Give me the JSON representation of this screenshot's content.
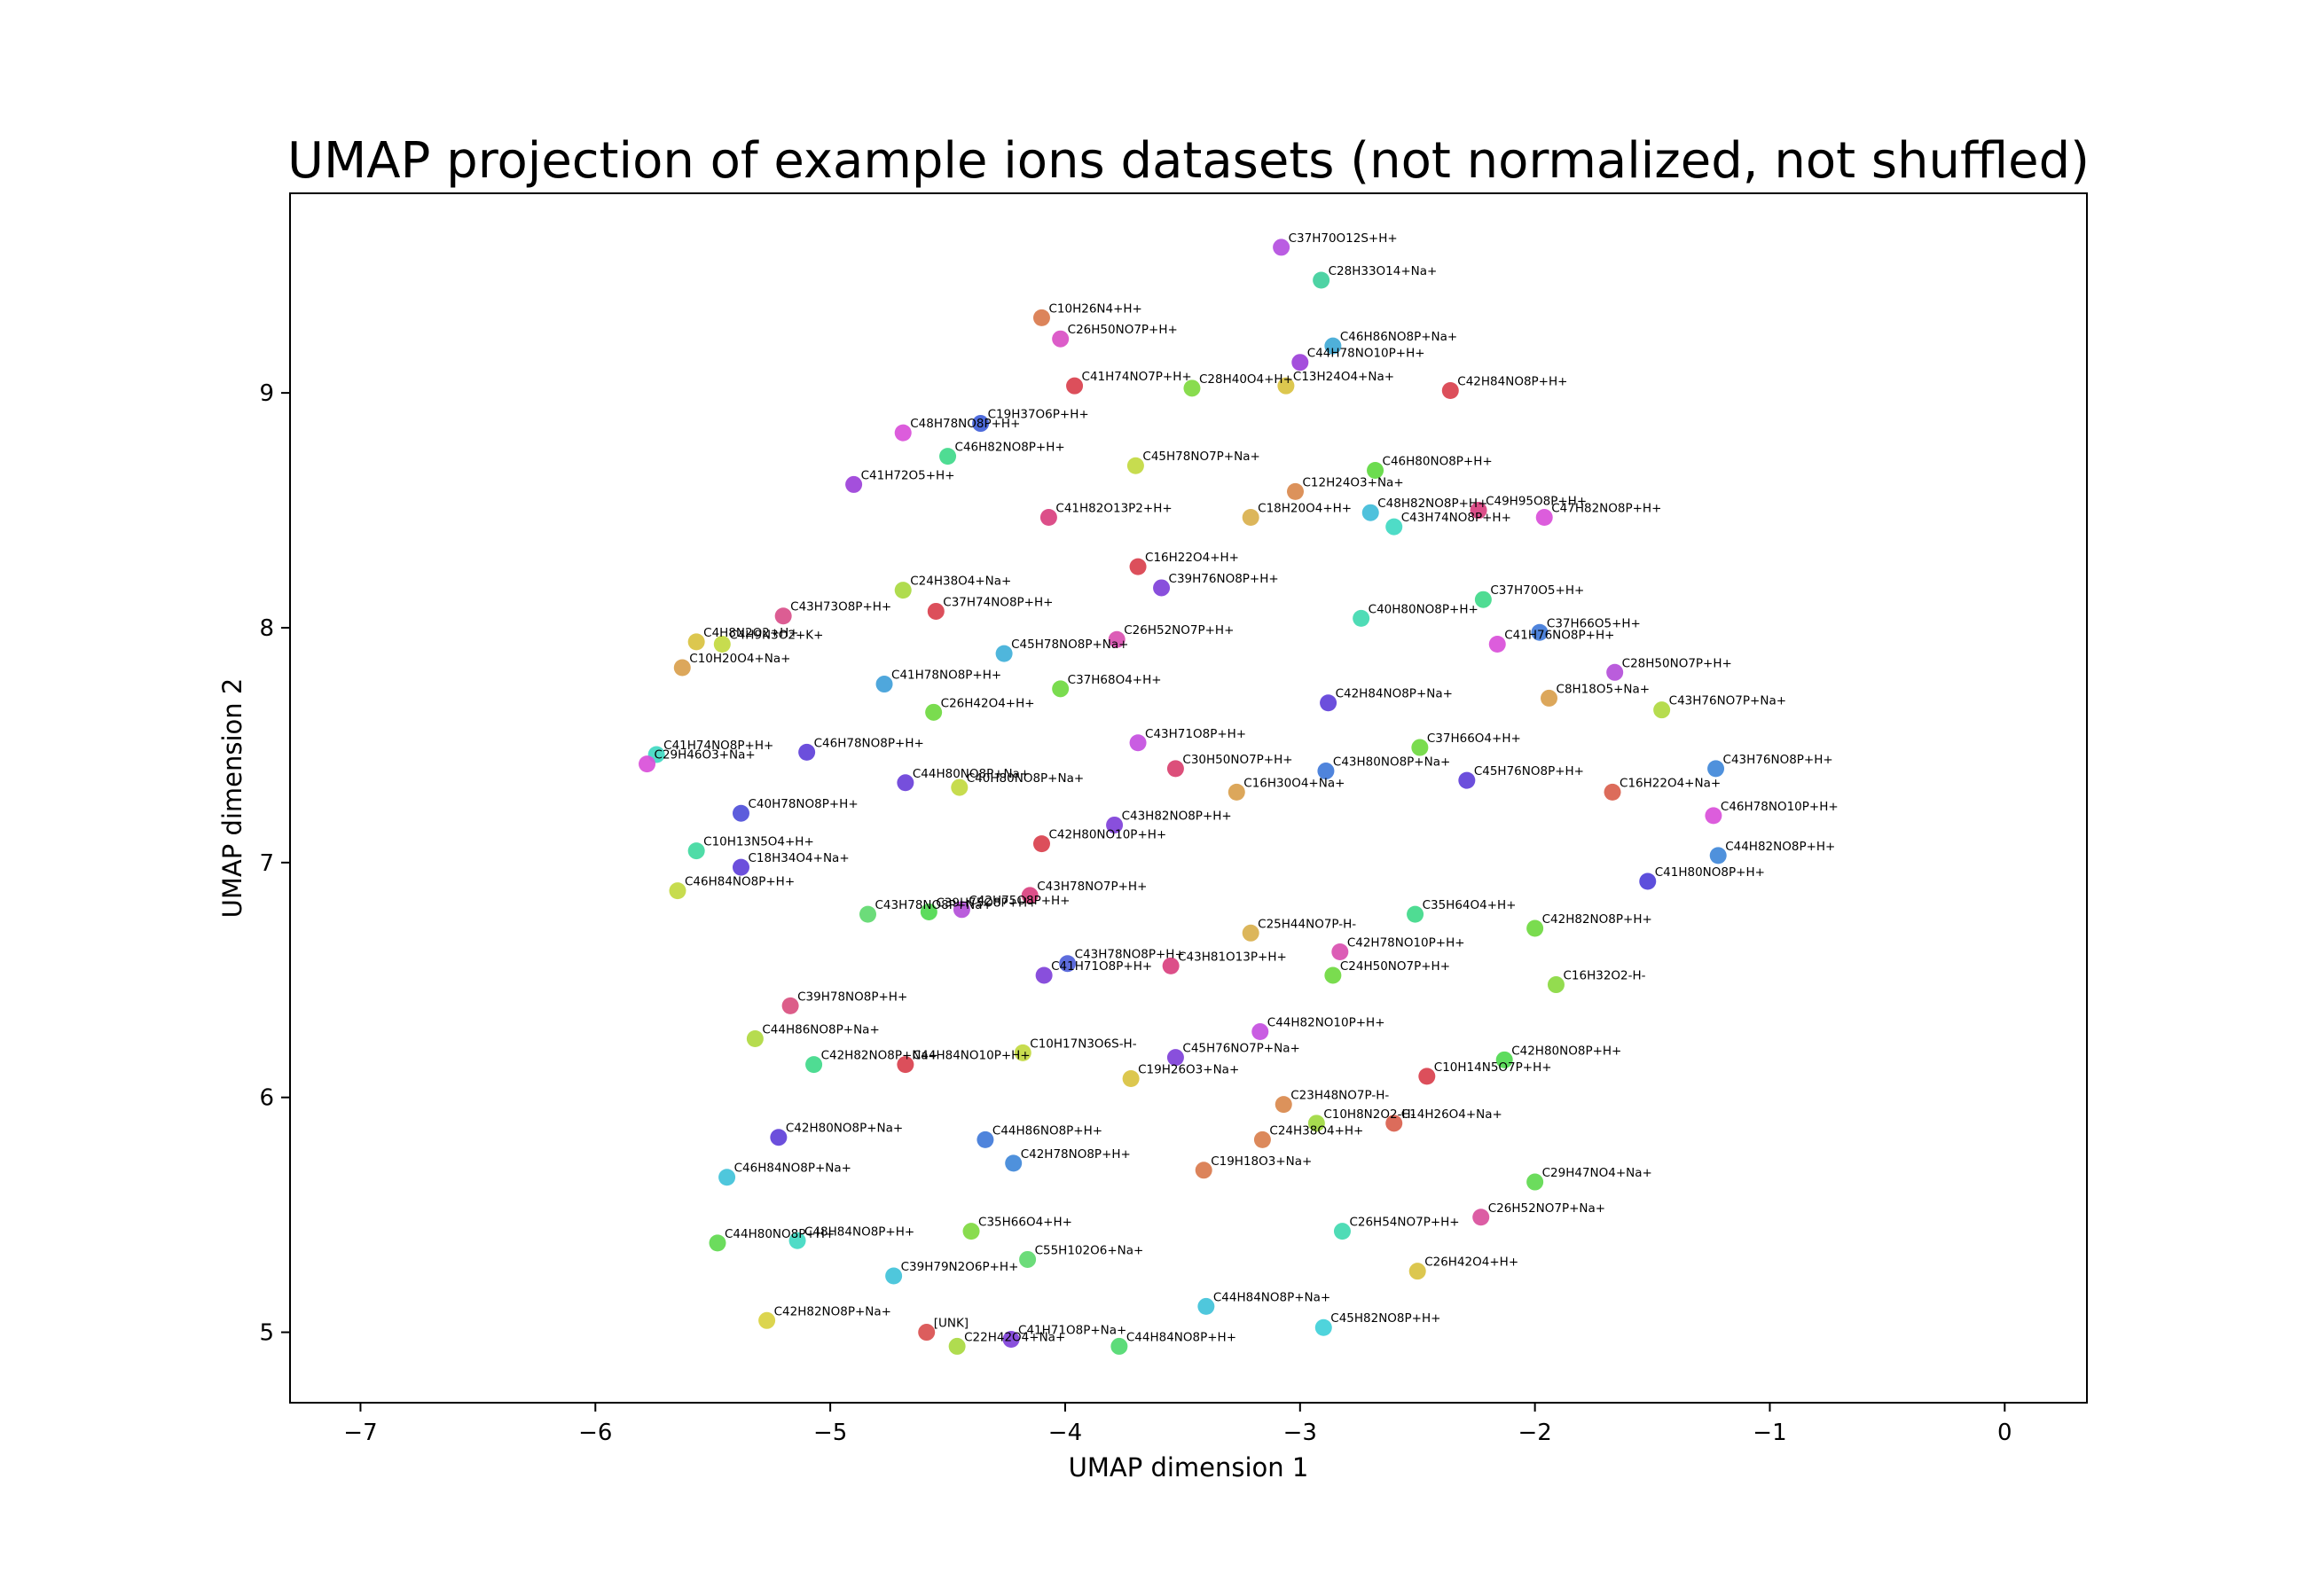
{
  "chart_data": {
    "type": "scatter",
    "title": "UMAP projection of example ions datasets (not normalized, not shuffled)",
    "xlabel": "UMAP dimension 1",
    "ylabel": "UMAP dimension 2",
    "xlim": [
      -7.3,
      0.35
    ],
    "ylim": [
      4.7,
      9.85
    ],
    "xticks": [
      {
        "value": -7,
        "label": "−7"
      },
      {
        "value": -6,
        "label": "−6"
      },
      {
        "value": -5,
        "label": "−5"
      },
      {
        "value": -4,
        "label": "−4"
      },
      {
        "value": -3,
        "label": "−3"
      },
      {
        "value": -2,
        "label": "−2"
      },
      {
        "value": -1,
        "label": "−1"
      },
      {
        "value": 0,
        "label": "0"
      }
    ],
    "yticks": [
      {
        "value": 5,
        "label": "5"
      },
      {
        "value": 6,
        "label": "6"
      },
      {
        "value": 7,
        "label": "7"
      },
      {
        "value": 8,
        "label": "8"
      },
      {
        "value": 9,
        "label": "9"
      }
    ],
    "grid": false,
    "points": [
      {
        "label": "C37H70O12S+H+",
        "x": -3.08,
        "y": 9.62,
        "color": "#b44fe0"
      },
      {
        "label": "C28H33O14+Na+",
        "x": -2.91,
        "y": 9.48,
        "color": "#3fcf9c"
      },
      {
        "label": "C10H26N4+H+",
        "x": -4.1,
        "y": 9.32,
        "color": "#d9794d"
      },
      {
        "label": "C26H50NO7P+H+",
        "x": -4.02,
        "y": 9.23,
        "color": "#d94fc4"
      },
      {
        "label": "C46H86NO8P+Na+",
        "x": -2.86,
        "y": 9.2,
        "color": "#40a9d6"
      },
      {
        "label": "C44H78NO10P+H+",
        "x": -3.0,
        "y": 9.13,
        "color": "#9c40d9"
      },
      {
        "label": "C41H74NO7P+H+",
        "x": -3.96,
        "y": 9.03,
        "color": "#d9404d"
      },
      {
        "label": "C28H40O4+H+",
        "x": -3.46,
        "y": 9.02,
        "color": "#7fd940"
      },
      {
        "label": "C13H24O4+Na+",
        "x": -3.06,
        "y": 9.03,
        "color": "#d9c240"
      },
      {
        "label": "C42H84NO8P+H+",
        "x": -2.36,
        "y": 9.01,
        "color": "#d9404d"
      },
      {
        "label": "C19H37O6P+H+",
        "x": -4.36,
        "y": 8.87,
        "color": "#4060d9"
      },
      {
        "label": "C48H78NO8P+H+",
        "x": -4.69,
        "y": 8.83,
        "color": "#d94fd9"
      },
      {
        "label": "C46H82NO8P+H+",
        "x": -4.5,
        "y": 8.73,
        "color": "#40d98a"
      },
      {
        "label": "C45H78NO7P+Na+",
        "x": -3.7,
        "y": 8.69,
        "color": "#c2d940"
      },
      {
        "label": "C46H80NO8P+H+",
        "x": -2.68,
        "y": 8.67,
        "color": "#5fd940"
      },
      {
        "label": "C41H72O5+H+",
        "x": -4.9,
        "y": 8.61,
        "color": "#9c40d9"
      },
      {
        "label": "C12H24O3+Na+",
        "x": -3.02,
        "y": 8.58,
        "color": "#d9894d"
      },
      {
        "label": "C48H82NO8P+H+",
        "x": -2.7,
        "y": 8.49,
        "color": "#40bcd9"
      },
      {
        "label": "C49H95O8P+H+",
        "x": -2.24,
        "y": 8.5,
        "color": "#d9407f"
      },
      {
        "label": "C41H82O13P2+H+",
        "x": -4.07,
        "y": 8.47,
        "color": "#d9407f"
      },
      {
        "label": "C18H20O4+H+",
        "x": -3.21,
        "y": 8.47,
        "color": "#d9b04d"
      },
      {
        "label": "C47H82NO8P+H+",
        "x": -1.96,
        "y": 8.47,
        "color": "#d94fd9"
      },
      {
        "label": "C43H74NO8P+H+",
        "x": -2.6,
        "y": 8.43,
        "color": "#40d9c2"
      },
      {
        "label": "C16H22O4+H+",
        "x": -3.69,
        "y": 8.26,
        "color": "#d9404d"
      },
      {
        "label": "C39H76NO8P+H+",
        "x": -3.59,
        "y": 8.17,
        "color": "#7f40d9"
      },
      {
        "label": "C24H38O4+Na+",
        "x": -4.69,
        "y": 8.16,
        "color": "#a9d940"
      },
      {
        "label": "C37H70O5+H+",
        "x": -2.22,
        "y": 8.12,
        "color": "#40d98a"
      },
      {
        "label": "C43H73O8P+H+",
        "x": -5.2,
        "y": 8.05,
        "color": "#d94f8a"
      },
      {
        "label": "C37H74NO8P+H+",
        "x": -4.55,
        "y": 8.07,
        "color": "#d9404d"
      },
      {
        "label": "C40H80NO8P+H+",
        "x": -2.74,
        "y": 8.04,
        "color": "#40d9b0"
      },
      {
        "label": "C37H66O5+H+",
        "x": -1.98,
        "y": 7.98,
        "color": "#4079d9"
      },
      {
        "label": "C26H52NO7P+H+",
        "x": -3.78,
        "y": 7.95,
        "color": "#d94fb0"
      },
      {
        "label": "C41H76NO8P+H+",
        "x": -2.16,
        "y": 7.93,
        "color": "#d94fd9"
      },
      {
        "label": "C4H8N2O2+H+",
        "x": -5.57,
        "y": 7.94,
        "color": "#d9c240"
      },
      {
        "label": "C4H9N3O2+K+",
        "x": -5.46,
        "y": 7.93,
        "color": "#c2d940"
      },
      {
        "label": "C45H78NO8P+Na+",
        "x": -4.26,
        "y": 7.89,
        "color": "#40b0d9"
      },
      {
        "label": "C10H20O4+Na+",
        "x": -5.63,
        "y": 7.83,
        "color": "#d9a04d"
      },
      {
        "label": "C28H50NO7P+H+",
        "x": -1.66,
        "y": 7.81,
        "color": "#b44fd9"
      },
      {
        "label": "C41H78NO8P+H+",
        "x": -4.77,
        "y": 7.76,
        "color": "#40a0d9"
      },
      {
        "label": "C37H68O4+H+",
        "x": -4.02,
        "y": 7.74,
        "color": "#6fd940"
      },
      {
        "label": "C8H18O5+Na+",
        "x": -1.94,
        "y": 7.7,
        "color": "#d9a04d"
      },
      {
        "label": "C42H84NO8P+Na+",
        "x": -2.88,
        "y": 7.68,
        "color": "#6040d9"
      },
      {
        "label": "C43H76NO7P+Na+",
        "x": -1.46,
        "y": 7.65,
        "color": "#b0d940"
      },
      {
        "label": "C26H42O4+H+",
        "x": -4.56,
        "y": 7.64,
        "color": "#6fd940"
      },
      {
        "label": "C43H71O8P+H+",
        "x": -3.69,
        "y": 7.51,
        "color": "#c44fe0"
      },
      {
        "label": "C37H66O4+H+",
        "x": -2.49,
        "y": 7.49,
        "color": "#6fd940"
      },
      {
        "label": "C41H74NO8P+H+",
        "x": -5.74,
        "y": 7.46,
        "color": "#40d9c2"
      },
      {
        "label": "C46H78NO8P+H+",
        "x": -5.1,
        "y": 7.47,
        "color": "#6040d9"
      },
      {
        "label": "C29H46O3+Na+",
        "x": -5.78,
        "y": 7.42,
        "color": "#d94fd9"
      },
      {
        "label": "C30H50NO7P+H+",
        "x": -3.53,
        "y": 7.4,
        "color": "#d9406f"
      },
      {
        "label": "C43H80NO8P+Na+",
        "x": -2.89,
        "y": 7.39,
        "color": "#4079d9"
      },
      {
        "label": "C43H76NO8P+H+",
        "x": -1.23,
        "y": 7.4,
        "color": "#4088d9"
      },
      {
        "label": "C45H76NO8P+H+",
        "x": -2.29,
        "y": 7.35,
        "color": "#6040d9"
      },
      {
        "label": "C44H80NO8P+Na+",
        "x": -4.68,
        "y": 7.34,
        "color": "#6a40d9"
      },
      {
        "label": "C40H80NO8P+Na+",
        "x": -4.45,
        "y": 7.32,
        "color": "#c2d940"
      },
      {
        "label": "C16H30O4+Na+",
        "x": -3.27,
        "y": 7.3,
        "color": "#d9a04d"
      },
      {
        "label": "C16H22O4+Na+",
        "x": -1.67,
        "y": 7.3,
        "color": "#d9604d"
      },
      {
        "label": "C40H78NO8P+H+",
        "x": -5.38,
        "y": 7.21,
        "color": "#4f4fd9"
      },
      {
        "label": "C46H78NO10P+H+",
        "x": -1.24,
        "y": 7.2,
        "color": "#d94fd9"
      },
      {
        "label": "C43H82NO8P+H+",
        "x": -3.79,
        "y": 7.16,
        "color": "#7f40d9"
      },
      {
        "label": "C42H80NO10P+H+",
        "x": -4.1,
        "y": 7.08,
        "color": "#d9404d"
      },
      {
        "label": "C10H13N5O4+H+",
        "x": -5.57,
        "y": 7.05,
        "color": "#40d9a0"
      },
      {
        "label": "C44H82NO8P+H+",
        "x": -1.22,
        "y": 7.03,
        "color": "#4088d9"
      },
      {
        "label": "C18H34O4+Na+",
        "x": -5.38,
        "y": 6.98,
        "color": "#6040d9"
      },
      {
        "label": "C41H80NO8P+H+",
        "x": -1.52,
        "y": 6.92,
        "color": "#4f40d9"
      },
      {
        "label": "C46H84NO8P+H+",
        "x": -5.65,
        "y": 6.88,
        "color": "#c2d940"
      },
      {
        "label": "C43H78NO7P+H+",
        "x": -4.15,
        "y": 6.86,
        "color": "#d9407f"
      },
      {
        "label": "C43H78NO8P+Na+",
        "x": -4.84,
        "y": 6.78,
        "color": "#5fd96f"
      },
      {
        "label": "C39H75O8P+H+",
        "x": -4.58,
        "y": 6.79,
        "color": "#4fd94f"
      },
      {
        "label": "C42H75O8P+H+",
        "x": -4.44,
        "y": 6.8,
        "color": "#b44fd9"
      },
      {
        "label": "C35H64O4+H+",
        "x": -2.51,
        "y": 6.78,
        "color": "#40d98a"
      },
      {
        "label": "C42H82NO8P+H+",
        "x": -2.0,
        "y": 6.72,
        "color": "#6fd940"
      },
      {
        "label": "C25H44NO7P-H-",
        "x": -3.21,
        "y": 6.7,
        "color": "#d9b04d"
      },
      {
        "label": "C42H78NO10P+H+",
        "x": -2.83,
        "y": 6.62,
        "color": "#d94fb0"
      },
      {
        "label": "C43H78NO8P+H+",
        "x": -3.99,
        "y": 6.57,
        "color": "#4f60d9"
      },
      {
        "label": "C43H81O13P+H+",
        "x": -3.55,
        "y": 6.56,
        "color": "#d9407f"
      },
      {
        "label": "C41H71O8P+H+",
        "x": -4.09,
        "y": 6.52,
        "color": "#7f40d9"
      },
      {
        "label": "C24H50NO7P+H+",
        "x": -2.86,
        "y": 6.52,
        "color": "#6fd940"
      },
      {
        "label": "C16H32O2-H-",
        "x": -1.91,
        "y": 6.48,
        "color": "#8ad940"
      },
      {
        "label": "C39H78NO8P+H+",
        "x": -5.17,
        "y": 6.39,
        "color": "#d94f7f"
      },
      {
        "label": "C44H82NO10P+H+",
        "x": -3.17,
        "y": 6.28,
        "color": "#c44fe0"
      },
      {
        "label": "C44H86NO8P+Na+",
        "x": -5.32,
        "y": 6.25,
        "color": "#b0d940"
      },
      {
        "label": "C10H17N3O6S-H-",
        "x": -4.18,
        "y": 6.19,
        "color": "#c2d940"
      },
      {
        "label": "C45H76NO7P+Na+",
        "x": -3.53,
        "y": 6.17,
        "color": "#7f40d9"
      },
      {
        "label": "C42H80NO8P+H+",
        "x": -2.13,
        "y": 6.16,
        "color": "#4fd94f"
      },
      {
        "label": "C42H82NO8P+Na+",
        "x": -5.07,
        "y": 6.14,
        "color": "#40d98a"
      },
      {
        "label": "C44H84NO10P+H+",
        "x": -4.68,
        "y": 6.14,
        "color": "#d9404d"
      },
      {
        "label": "C10H14N5O7P+H+",
        "x": -2.46,
        "y": 6.09,
        "color": "#d9404d"
      },
      {
        "label": "C19H26O3+Na+",
        "x": -3.72,
        "y": 6.08,
        "color": "#d9c240"
      },
      {
        "label": "C23H48NO7P-H-",
        "x": -3.07,
        "y": 5.97,
        "color": "#d9894d"
      },
      {
        "label": "C10H8N2O2-H-",
        "x": -2.93,
        "y": 5.89,
        "color": "#a0d940"
      },
      {
        "label": "C14H26O4+Na+",
        "x": -2.6,
        "y": 5.89,
        "color": "#d9604d"
      },
      {
        "label": "C42H80NO8P+Na+",
        "x": -5.22,
        "y": 5.83,
        "color": "#5f40d9"
      },
      {
        "label": "C44H86NO8P+H+",
        "x": -4.34,
        "y": 5.82,
        "color": "#4079d9"
      },
      {
        "label": "C24H38O4+H+",
        "x": -3.16,
        "y": 5.82,
        "color": "#d97f4d"
      },
      {
        "label": "C42H78NO8P+H+",
        "x": -4.22,
        "y": 5.72,
        "color": "#4088d9"
      },
      {
        "label": "C19H18O3+Na+",
        "x": -3.41,
        "y": 5.69,
        "color": "#d9794d"
      },
      {
        "label": "C46H84NO8P+Na+",
        "x": -5.44,
        "y": 5.66,
        "color": "#40c2d9"
      },
      {
        "label": "C29H47NO4+Na+",
        "x": -2.0,
        "y": 5.64,
        "color": "#5fd94f"
      },
      {
        "label": "C26H52NO7P+Na+",
        "x": -2.23,
        "y": 5.49,
        "color": "#d94f9c"
      },
      {
        "label": "C35H66O4+H+",
        "x": -4.4,
        "y": 5.43,
        "color": "#7fd940"
      },
      {
        "label": "C26H54NO7P+H+",
        "x": -2.82,
        "y": 5.43,
        "color": "#40d9b0"
      },
      {
        "label": "C44H80NO8P+H+",
        "x": -5.48,
        "y": 5.38,
        "color": "#5fd94f"
      },
      {
        "label": "C48H84NO8P+H+",
        "x": -5.14,
        "y": 5.39,
        "color": "#40d9c2"
      },
      {
        "label": "C55H102O6+Na+",
        "x": -4.16,
        "y": 5.31,
        "color": "#5fd96f"
      },
      {
        "label": "C26H42O4+H+",
        "x": -2.5,
        "y": 5.26,
        "color": "#d9c240"
      },
      {
        "label": "C39H79N2O6P+H+",
        "x": -4.73,
        "y": 5.24,
        "color": "#40c2d9"
      },
      {
        "label": "C44H84NO8P+Na+",
        "x": -3.4,
        "y": 5.11,
        "color": "#40c2d9"
      },
      {
        "label": "C42H82NO8P+Na+",
        "x": -5.27,
        "y": 5.05,
        "color": "#d9d140"
      },
      {
        "label": "C45H82NO8P+H+",
        "x": -2.9,
        "y": 5.02,
        "color": "#40d0d9"
      },
      {
        "label": "[UNK]",
        "x": -4.59,
        "y": 5.0,
        "color": "#d94f4f"
      },
      {
        "label": "C41H71O8P+Na+",
        "x": -4.23,
        "y": 4.97,
        "color": "#7f40d9"
      },
      {
        "label": "C22H42O4+Na+",
        "x": -4.46,
        "y": 4.94,
        "color": "#a9d940"
      },
      {
        "label": "C44H84NO8P+H+",
        "x": -3.77,
        "y": 4.94,
        "color": "#4fd96f"
      }
    ]
  }
}
